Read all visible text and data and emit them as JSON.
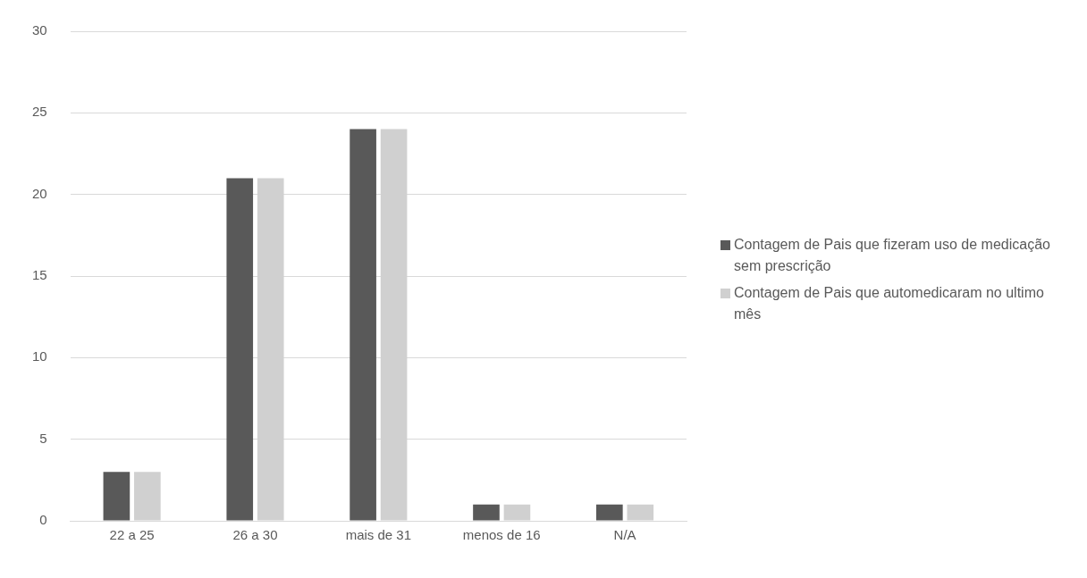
{
  "chart_data": {
    "type": "bar",
    "categories": [
      "22 a 25",
      "26 a 30",
      "mais de 31",
      "menos de 16",
      "N/A"
    ],
    "series": [
      {
        "name": "Contagem de Pais que fizeram uso de medicação sem prescrição",
        "color": "#595959",
        "values": [
          3,
          21,
          24,
          1,
          1
        ]
      },
      {
        "name": "Contagem de Pais que automedicaram no ultimo mês",
        "color": "#d0d0d0",
        "values": [
          3,
          21,
          24,
          1,
          1
        ]
      }
    ],
    "ylim": [
      0,
      30
    ],
    "yticks": [
      0,
      5,
      10,
      15,
      20,
      25,
      30
    ],
    "grid": "y",
    "legend": "right"
  }
}
